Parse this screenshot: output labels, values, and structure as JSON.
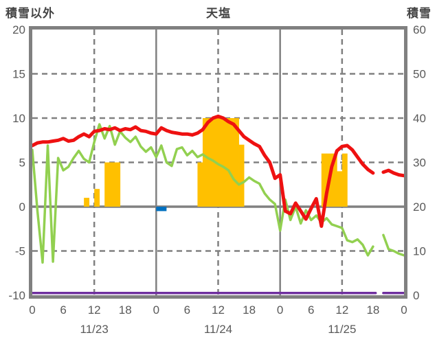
{
  "header": {
    "left_axis_title": "積雪以外",
    "chart_title": "天塩",
    "right_axis_title": "積雪"
  },
  "chart_data": {
    "type": "combo-line-bar",
    "title": "天塩",
    "station": "天塩",
    "x_unit": "hours from 11/23 00:00",
    "x_range_hours": [
      0,
      72
    ],
    "left_axis": {
      "label": "積雪以外",
      "min": -10,
      "max": 20,
      "ticks": [
        20,
        15,
        10,
        5,
        0,
        -5,
        -10
      ]
    },
    "right_axis": {
      "label": "積雪",
      "min": 0,
      "max": 60,
      "ticks": [
        60,
        50,
        40,
        30,
        20,
        10,
        0
      ]
    },
    "x_ticks": [
      {
        "hour": 0,
        "label": "0"
      },
      {
        "hour": 6,
        "label": "6"
      },
      {
        "hour": 12,
        "label": "12"
      },
      {
        "hour": 18,
        "label": "18"
      },
      {
        "hour": 24,
        "label": "0"
      },
      {
        "hour": 30,
        "label": "6"
      },
      {
        "hour": 36,
        "label": "12"
      },
      {
        "hour": 42,
        "label": "18"
      },
      {
        "hour": 48,
        "label": "0"
      },
      {
        "hour": 54,
        "label": "6"
      },
      {
        "hour": 60,
        "label": "12"
      },
      {
        "hour": 66,
        "label": "18"
      },
      {
        "hour": 72,
        "label": "0"
      }
    ],
    "dates": [
      {
        "label": "11/23",
        "center_hour": 12
      },
      {
        "label": "11/24",
        "center_hour": 36
      },
      {
        "label": "11/25",
        "center_hour": 60
      }
    ],
    "grid": {
      "h_dashed_values": [
        15,
        10,
        5,
        -5
      ],
      "h_solid_values": [
        0
      ],
      "v_dashed_hours": [
        12,
        36,
        60
      ],
      "v_solid_hours": [
        24,
        48
      ]
    },
    "colors": {
      "grid": "#808080",
      "border": "#808080",
      "text": "#595959",
      "title": "#444444"
    },
    "bars": {
      "name": "precipitation-bars",
      "color": "#ffc000",
      "items": [
        {
          "hour": 10,
          "value": 1
        },
        {
          "hour": 12,
          "value": 2
        },
        {
          "hour": 14,
          "value": 5
        },
        {
          "hour": 15,
          "value": 5
        },
        {
          "hour": 16,
          "value": 5
        },
        {
          "hour": 32,
          "value": 5
        },
        {
          "hour": 33,
          "value": 10
        },
        {
          "hour": 34,
          "value": 10
        },
        {
          "hour": 35,
          "value": 10
        },
        {
          "hour": 36,
          "value": 10
        },
        {
          "hour": 37,
          "value": 10
        },
        {
          "hour": 38,
          "value": 10
        },
        {
          "hour": 39,
          "value": 10
        },
        {
          "hour": 40,
          "value": 7
        },
        {
          "hour": 56,
          "value": 6
        },
        {
          "hour": 57,
          "value": 6
        },
        {
          "hour": 58,
          "value": 6
        },
        {
          "hour": 59,
          "value": 4
        },
        {
          "hour": 60,
          "value": 6
        }
      ]
    },
    "snowfall_bar": {
      "color": "#0070c0",
      "start_hour": 24,
      "end_hour": 26,
      "value": -0.5
    },
    "series": [
      {
        "name": "green-line",
        "color": "#92d050",
        "width": 3.5,
        "axis": "left",
        "points": [
          [
            0,
            6.4
          ],
          [
            1,
            -0.5
          ],
          [
            2,
            -6.3
          ],
          [
            3,
            6.9
          ],
          [
            4,
            -6.2
          ],
          [
            5,
            5.5
          ],
          [
            6,
            4.1
          ],
          [
            7,
            4.5
          ],
          [
            8,
            5.5
          ],
          [
            9,
            6.3
          ],
          [
            10,
            5.4
          ],
          [
            11,
            5.0
          ],
          [
            12,
            7.3
          ],
          [
            13,
            9.3
          ],
          [
            14,
            7.7
          ],
          [
            15,
            9.1
          ],
          [
            16,
            7.0
          ],
          [
            17,
            8.5
          ],
          [
            18,
            7.8
          ],
          [
            19,
            7.3
          ],
          [
            20,
            7.9
          ],
          [
            21,
            6.8
          ],
          [
            22,
            6.2
          ],
          [
            23,
            6.7
          ],
          [
            24,
            5.6
          ],
          [
            25,
            6.9
          ],
          [
            26,
            5.0
          ],
          [
            27,
            4.6
          ],
          [
            28,
            6.5
          ],
          [
            29,
            6.7
          ],
          [
            30,
            5.8
          ],
          [
            31,
            6.3
          ],
          [
            32,
            5.6
          ],
          [
            33,
            5.9
          ],
          [
            34,
            5.5
          ],
          [
            35,
            5.2
          ],
          [
            36,
            4.8
          ],
          [
            37,
            4.5
          ],
          [
            38,
            4.1
          ],
          [
            39,
            3.1
          ],
          [
            40,
            2.5
          ],
          [
            41,
            2.8
          ],
          [
            42,
            3.3
          ],
          [
            43,
            2.9
          ],
          [
            44,
            2.6
          ],
          [
            45,
            1.5
          ],
          [
            46,
            0.8
          ],
          [
            47,
            0.3
          ],
          [
            48,
            -2.7
          ],
          [
            49,
            0.8
          ],
          [
            50,
            -1.5
          ],
          [
            51,
            0.0
          ],
          [
            52,
            -1.9
          ],
          [
            53,
            -0.4
          ],
          [
            54,
            -1.5
          ],
          [
            55,
            -1.0
          ],
          [
            56,
            -1.8
          ],
          [
            57,
            -1.3
          ],
          [
            58,
            -2.0
          ],
          [
            59,
            -2.2
          ],
          [
            60,
            -2.4
          ],
          [
            61,
            -3.8
          ],
          [
            62,
            -4.0
          ],
          [
            63,
            -3.7
          ],
          [
            64,
            -4.3
          ],
          [
            65,
            -5.5
          ],
          [
            66,
            -4.5
          ],
          [
            67,
            null
          ],
          [
            68,
            -3.2
          ],
          [
            69,
            -4.8
          ],
          [
            70,
            -5.0
          ],
          [
            71,
            -5.3
          ],
          [
            72,
            -5.5
          ]
        ]
      },
      {
        "name": "red-line",
        "color": "#ee1111",
        "width": 5,
        "axis": "left",
        "points": [
          [
            0,
            6.9
          ],
          [
            1,
            7.2
          ],
          [
            2,
            7.3
          ],
          [
            3,
            7.3
          ],
          [
            4,
            7.4
          ],
          [
            5,
            7.5
          ],
          [
            6,
            7.7
          ],
          [
            7,
            7.4
          ],
          [
            8,
            7.5
          ],
          [
            9,
            7.9
          ],
          [
            10,
            8.2
          ],
          [
            11,
            7.9
          ],
          [
            12,
            8.5
          ],
          [
            13,
            8.6
          ],
          [
            14,
            8.8
          ],
          [
            15,
            8.7
          ],
          [
            16,
            8.9
          ],
          [
            17,
            8.6
          ],
          [
            18,
            8.8
          ],
          [
            19,
            8.7
          ],
          [
            20,
            9.0
          ],
          [
            21,
            8.6
          ],
          [
            22,
            8.5
          ],
          [
            23,
            8.3
          ],
          [
            24,
            8.2
          ],
          [
            25,
            8.9
          ],
          [
            26,
            8.6
          ],
          [
            27,
            8.4
          ],
          [
            28,
            8.3
          ],
          [
            29,
            8.2
          ],
          [
            30,
            8.2
          ],
          [
            31,
            8.1
          ],
          [
            32,
            8.3
          ],
          [
            33,
            8.7
          ],
          [
            34,
            9.5
          ],
          [
            35,
            10.0
          ],
          [
            36,
            10.2
          ],
          [
            37,
            10.0
          ],
          [
            38,
            9.6
          ],
          [
            39,
            9.3
          ],
          [
            40,
            8.6
          ],
          [
            41,
            7.9
          ],
          [
            42,
            7.5
          ],
          [
            43,
            7.1
          ],
          [
            44,
            6.8
          ],
          [
            45,
            5.8
          ],
          [
            46,
            5.0
          ],
          [
            47,
            3.2
          ],
          [
            48,
            3.6
          ],
          [
            49,
            -0.5
          ],
          [
            50,
            -0.8
          ],
          [
            51,
            0.4
          ],
          [
            52,
            -0.5
          ],
          [
            53,
            -1.4
          ],
          [
            54,
            -0.2
          ],
          [
            55,
            0.9
          ],
          [
            56,
            -2.2
          ],
          [
            57,
            1.5
          ],
          [
            58,
            4.5
          ],
          [
            59,
            6.3
          ],
          [
            60,
            6.8
          ],
          [
            61,
            6.9
          ],
          [
            62,
            6.4
          ],
          [
            63,
            5.6
          ],
          [
            64,
            4.8
          ],
          [
            65,
            4.2
          ],
          [
            66,
            3.8
          ],
          [
            67,
            null
          ],
          [
            68,
            3.9
          ],
          [
            69,
            4.1
          ],
          [
            70,
            3.8
          ],
          [
            71,
            3.6
          ],
          [
            72,
            3.5
          ]
        ]
      },
      {
        "name": "purple-line",
        "color": "#7030a0",
        "width": 3.5,
        "axis": "right",
        "points": [
          [
            0,
            0.5
          ],
          [
            66.5,
            0.5
          ],
          [
            67,
            null
          ],
          [
            68,
            0.5
          ],
          [
            72,
            0.5
          ]
        ]
      }
    ]
  }
}
